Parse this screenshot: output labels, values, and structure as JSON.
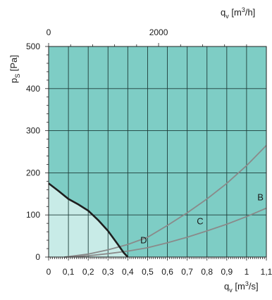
{
  "chart_data": {
    "type": "line",
    "axes": {
      "x_bottom": {
        "label_symbol": "q",
        "label_sub": "v",
        "label_unit": "[m",
        "label_sup": "3",
        "label_unit_end": "/s]",
        "range": [
          0,
          1.1
        ],
        "ticks": [
          0,
          0.1,
          0.2,
          0.3,
          0.4,
          0.5,
          0.6,
          0.7,
          0.8,
          0.9,
          1.0,
          1.1
        ],
        "tick_labels": [
          "0",
          "0,1",
          "0,2",
          "0,3",
          "0,4",
          "0,5",
          "0,6",
          "0,7",
          "0,8",
          "0,9",
          "1",
          "1,1"
        ]
      },
      "x_top": {
        "label_symbol": "q",
        "label_sub": "v",
        "label_unit": "[m",
        "label_sup": "3",
        "label_unit_end": "/h]",
        "tick_values": [
          0,
          2000
        ],
        "tick_labels": [
          "0",
          "2000"
        ],
        "conversion_factor": 3600
      },
      "y": {
        "label_symbol": "p",
        "label_sub": "S",
        "label_unit": "[Pa]",
        "range": [
          0,
          500
        ],
        "ticks": [
          0,
          100,
          200,
          300,
          400,
          500
        ],
        "tick_labels": [
          "0",
          "100",
          "200",
          "300",
          "400",
          "500"
        ]
      }
    },
    "grid": true,
    "background_color": "#7ecdc5",
    "operating_area_color": "#c8ebe7",
    "series": [
      {
        "label": "",
        "role": "fan-curve",
        "color": "#1e1e1e",
        "x": [
          0,
          0.05,
          0.1,
          0.15,
          0.2,
          0.25,
          0.3,
          0.35,
          0.38,
          0.4
        ],
        "y": [
          175,
          157,
          138,
          125,
          110,
          88,
          62,
          30,
          10,
          0
        ]
      },
      {
        "label": "B",
        "role": "system-curve",
        "color": "#8a8a8a",
        "x": [
          0.08,
          0.2,
          0.3,
          0.4,
          0.5,
          0.6,
          0.7,
          0.8,
          0.9,
          1.0,
          1.1
        ],
        "y": [
          0,
          3,
          8,
          14,
          22,
          34,
          47,
          62,
          78,
          96,
          116
        ]
      },
      {
        "label": "C",
        "role": "system-curve",
        "color": "#8a8a8a",
        "x": [
          0.08,
          0.2,
          0.3,
          0.4,
          0.5,
          0.6,
          0.7,
          0.8,
          0.9,
          1.0,
          1.1
        ],
        "y": [
          0,
          7,
          17,
          30,
          47,
          75,
          105,
          138,
          175,
          217,
          265
        ]
      }
    ],
    "annotations": [
      {
        "text": "B",
        "x": 1.07,
        "y": 135
      },
      {
        "text": "C",
        "x": 0.765,
        "y": 78
      },
      {
        "text": "D",
        "x": 0.48,
        "y": 33
      }
    ]
  }
}
